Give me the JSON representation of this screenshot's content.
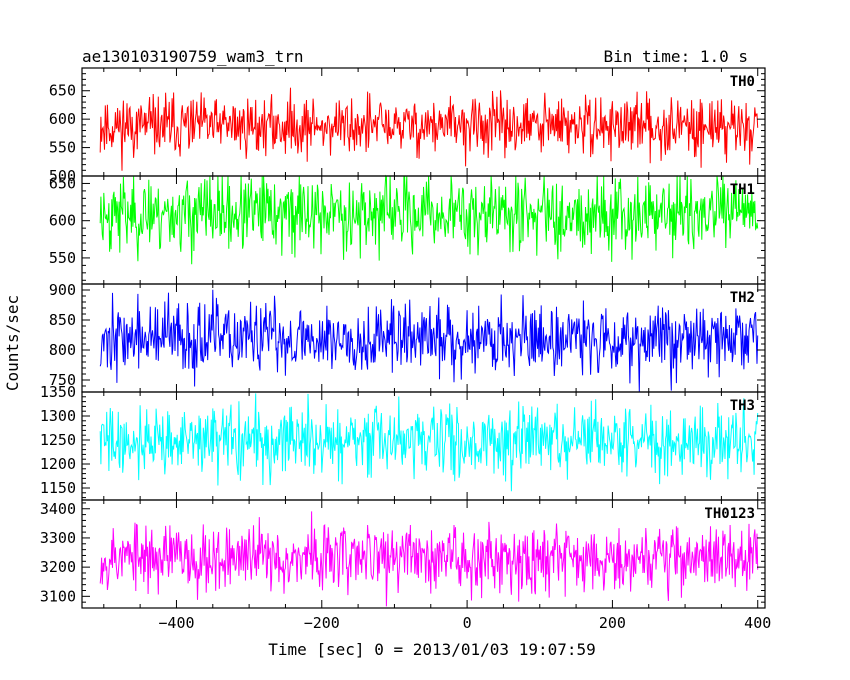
{
  "chart_data": {
    "type": "line",
    "title_left": "ae130103190759_wam3_trn",
    "title_right": "Bin time: 1.0 s",
    "xlabel": "Time [sec] 0 = 2013/01/03 19:07:59",
    "ylabel": "Counts/sec",
    "xlim": [
      -530,
      410
    ],
    "x_range": [
      -505,
      400
    ],
    "x_ticks": [
      -400,
      -200,
      0,
      200,
      400
    ],
    "x_tick_labels": [
      "−400",
      "−200",
      "0",
      "200",
      "400"
    ],
    "series": [
      {
        "name": "TH0",
        "color": "#ff0000",
        "ylim": [
          500,
          690
        ],
        "y_ticks": [
          500,
          550,
          600,
          650
        ],
        "y_tick_labels": [
          "500",
          "550",
          "600",
          "650"
        ],
        "mean": 588,
        "spread": 26,
        "seed": 11
      },
      {
        "name": "TH1",
        "color": "#00ff00",
        "ylim": [
          515,
          660
        ],
        "y_ticks": [
          550,
          600,
          650
        ],
        "y_tick_labels": [
          "550",
          "600",
          "650"
        ],
        "mean": 610,
        "spread": 26,
        "seed": 23
      },
      {
        "name": "TH2",
        "color": "#0000ff",
        "ylim": [
          730,
          910
        ],
        "y_ticks": [
          750,
          800,
          850,
          900
        ],
        "y_tick_labels": [
          "750",
          "800",
          "850",
          "900"
        ],
        "mean": 820,
        "spread": 30,
        "seed": 37
      },
      {
        "name": "TH3",
        "color": "#00ffff",
        "ylim": [
          1125,
          1350
        ],
        "y_ticks": [
          1150,
          1200,
          1250,
          1300,
          1350
        ],
        "y_tick_labels": [
          "1150",
          "1200",
          "1250",
          "1300",
          "1350"
        ],
        "mean": 1248,
        "spread": 36,
        "seed": 41
      },
      {
        "name": "TH0123",
        "color": "#ff00ff",
        "ylim": [
          3060,
          3430
        ],
        "y_ticks": [
          3100,
          3200,
          3300,
          3400
        ],
        "y_tick_labels": [
          "3100",
          "3200",
          "3300",
          "3400"
        ],
        "mean": 3235,
        "spread": 58,
        "seed": 53
      }
    ]
  }
}
